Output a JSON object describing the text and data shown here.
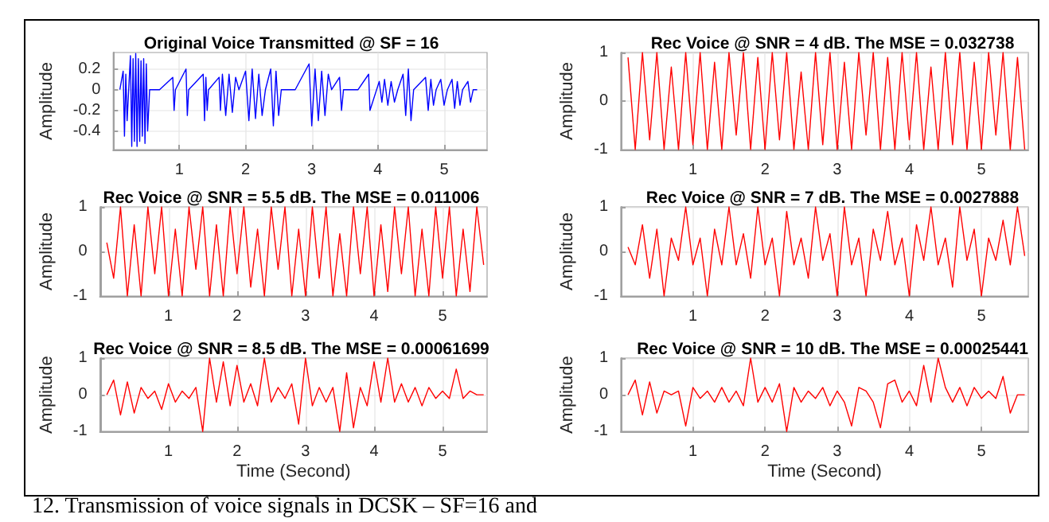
{
  "chart_data": [
    {
      "type": "line",
      "title": "Original Voice Transmitted @ SF = 16",
      "ylabel": "Amplitude",
      "color": "#0000ff",
      "grid": true,
      "line_style": "solid",
      "xlim": [
        0,
        5.65
      ],
      "xticks": [
        1,
        2,
        3,
        4,
        5
      ],
      "ylim": [
        -0.58,
        0.36
      ],
      "yticks": [
        -0.4,
        -0.2,
        0,
        0.2
      ],
      "x": [
        0.1,
        0.15,
        0.17,
        0.19,
        0.21,
        0.26,
        0.28,
        0.3,
        0.32,
        0.34,
        0.36,
        0.38,
        0.4,
        0.42,
        0.44,
        0.46,
        0.48,
        0.5,
        0.52,
        0.55,
        0.7,
        0.9,
        0.92,
        0.94,
        1.1,
        1.12,
        1.14,
        1.36,
        1.38,
        1.4,
        1.42,
        1.44,
        1.6,
        1.62,
        1.65,
        1.7,
        1.75,
        1.8,
        1.85,
        1.9,
        2.0,
        2.05,
        2.1,
        2.15,
        2.2,
        2.25,
        2.3,
        2.38,
        2.42,
        2.46,
        2.5,
        2.54,
        2.75,
        2.96,
        3.0,
        3.05,
        3.1,
        3.15,
        3.2,
        3.25,
        3.3,
        3.42,
        3.45,
        3.48,
        3.7,
        3.86,
        3.88,
        4.02,
        4.06,
        4.1,
        4.15,
        4.2,
        4.25,
        4.3,
        4.38,
        4.42,
        4.46,
        4.5,
        4.54,
        4.72,
        4.76,
        4.8,
        4.84,
        4.88,
        4.95,
        5.0,
        5.05,
        5.12,
        5.16,
        5.2,
        5.24,
        5.28,
        5.36,
        5.4,
        5.44,
        5.5
      ],
      "values": [
        0,
        0.18,
        -0.45,
        0.15,
        -0.3,
        0.33,
        -0.55,
        0.3,
        -0.5,
        0.35,
        -0.55,
        0.3,
        -0.5,
        0.28,
        -0.45,
        0.3,
        -0.52,
        0.25,
        -0.4,
        0,
        0,
        0.12,
        -0.2,
        0,
        0.2,
        -0.25,
        0,
        0.15,
        -0.3,
        0.12,
        -0.2,
        0,
        0.12,
        -0.2,
        0.15,
        -0.25,
        0.15,
        -0.22,
        0.12,
        0,
        0.18,
        -0.3,
        0.2,
        -0.28,
        0.15,
        -0.25,
        0,
        0.2,
        -0.35,
        0.18,
        -0.25,
        0,
        0,
        0.25,
        -0.35,
        0.2,
        -0.3,
        0.18,
        -0.25,
        0.15,
        0,
        0.12,
        -0.2,
        0,
        0,
        0.15,
        -0.2,
        0.08,
        -0.12,
        0.1,
        -0.15,
        0.08,
        -0.12,
        0,
        0.15,
        -0.25,
        0.2,
        -0.3,
        0,
        0.12,
        -0.2,
        0.1,
        -0.15,
        0,
        0.1,
        -0.15,
        0,
        0.1,
        -0.18,
        0.08,
        -0.15,
        0,
        0.08,
        -0.12,
        0,
        0
      ]
    },
    {
      "type": "line",
      "title": "Rec Voice @ SNR = 4 dB. The MSE = 0.032738",
      "ylabel": "Amplitude",
      "color": "#ff0000",
      "grid": true,
      "line_style": "solid",
      "xlim": [
        0,
        5.65
      ],
      "xticks": [
        1,
        2,
        3,
        4,
        5
      ],
      "ylim": [
        -1,
        1
      ],
      "yticks": [
        -1,
        0,
        1
      ],
      "x": [
        0.1,
        0.2,
        0.3,
        0.4,
        0.5,
        0.6,
        0.7,
        0.8,
        0.9,
        1.0,
        1.1,
        1.2,
        1.3,
        1.4,
        1.5,
        1.6,
        1.7,
        1.8,
        1.9,
        2.0,
        2.1,
        2.2,
        2.3,
        2.4,
        2.5,
        2.6,
        2.7,
        2.8,
        2.9,
        3.0,
        3.1,
        3.2,
        3.3,
        3.4,
        3.5,
        3.6,
        3.7,
        3.8,
        3.9,
        4.0,
        4.1,
        4.2,
        4.3,
        4.4,
        4.5,
        4.6,
        4.7,
        4.8,
        4.9,
        5.0,
        5.1,
        5.2,
        5.3,
        5.4,
        5.5,
        5.6
      ],
      "values": [
        0.9,
        -1,
        1,
        -0.8,
        1,
        -1,
        0.7,
        -1,
        1,
        -0.9,
        1,
        -1,
        0.8,
        -1,
        1,
        -0.7,
        1,
        -1,
        0.9,
        -1,
        1,
        -0.8,
        1,
        -1,
        0.6,
        -1,
        1,
        -0.9,
        1,
        -1,
        0.8,
        -1,
        1,
        -0.7,
        1,
        -1,
        0.9,
        -1,
        1,
        -0.8,
        1,
        -1,
        0.7,
        -1,
        1,
        -0.9,
        1,
        -1,
        0.8,
        -1,
        1,
        -0.7,
        1,
        -1,
        0.9,
        -1
      ]
    },
    {
      "type": "line",
      "title": "Rec Voice @ SNR = 5.5 dB. The MSE = 0.011006",
      "ylabel": "Amplitude",
      "color": "#ff0000",
      "grid": true,
      "line_style": "solid",
      "xlim": [
        0,
        5.65
      ],
      "xticks": [
        1,
        2,
        3,
        4,
        5
      ],
      "ylim": [
        -1,
        1
      ],
      "yticks": [
        -1,
        0,
        1
      ],
      "x": [
        0.1,
        0.2,
        0.3,
        0.4,
        0.5,
        0.6,
        0.7,
        0.8,
        0.9,
        1.0,
        1.1,
        1.2,
        1.3,
        1.4,
        1.5,
        1.6,
        1.7,
        1.8,
        1.9,
        2.0,
        2.1,
        2.2,
        2.3,
        2.4,
        2.5,
        2.6,
        2.7,
        2.8,
        2.9,
        3.0,
        3.1,
        3.2,
        3.3,
        3.4,
        3.5,
        3.6,
        3.7,
        3.8,
        3.9,
        4.0,
        4.1,
        4.2,
        4.3,
        4.4,
        4.5,
        4.6,
        4.7,
        4.8,
        4.9,
        5.0,
        5.1,
        5.2,
        5.3,
        5.4,
        5.5,
        5.6
      ],
      "values": [
        0.2,
        -0.6,
        1,
        -1,
        0.6,
        -1,
        1,
        -0.5,
        1,
        -1,
        0.5,
        -1,
        1,
        -0.4,
        1,
        -1,
        0.6,
        -1,
        1,
        -0.5,
        1,
        -0.8,
        0.5,
        -1,
        1,
        -0.4,
        1,
        -1,
        0.5,
        -1,
        1,
        -0.6,
        1,
        -1,
        0.4,
        -1,
        1,
        -0.5,
        1,
        -1,
        0.6,
        -0.9,
        1,
        -0.5,
        1,
        -1,
        0.5,
        -1,
        1,
        -0.6,
        1,
        -1,
        0.5,
        -0.9,
        1,
        -0.3
      ]
    },
    {
      "type": "line",
      "title": "Rec Voice @ SNR = 7 dB. The MSE = 0.0027888",
      "ylabel": "Amplitude",
      "color": "#ff0000",
      "grid": true,
      "line_style": "solid",
      "xlim": [
        0,
        5.65
      ],
      "xticks": [
        1,
        2,
        3,
        4,
        5
      ],
      "ylim": [
        -1,
        1
      ],
      "yticks": [
        -1,
        0,
        1
      ],
      "x": [
        0.1,
        0.2,
        0.3,
        0.4,
        0.5,
        0.6,
        0.7,
        0.8,
        0.9,
        1.0,
        1.1,
        1.2,
        1.3,
        1.4,
        1.5,
        1.6,
        1.7,
        1.8,
        1.9,
        2.0,
        2.1,
        2.2,
        2.3,
        2.4,
        2.5,
        2.6,
        2.7,
        2.8,
        2.9,
        3.0,
        3.1,
        3.2,
        3.3,
        3.4,
        3.5,
        3.6,
        3.7,
        3.8,
        3.9,
        4.0,
        4.1,
        4.2,
        4.3,
        4.4,
        4.5,
        4.6,
        4.7,
        4.8,
        4.9,
        5.0,
        5.1,
        5.2,
        5.3,
        5.4,
        5.5,
        5.6
      ],
      "values": [
        0.1,
        -0.3,
        0.6,
        -0.6,
        0.5,
        -1,
        0.3,
        -0.2,
        1,
        -0.3,
        0.3,
        -1,
        0.5,
        -0.3,
        1,
        -0.3,
        0.4,
        -0.6,
        1,
        -0.3,
        0.3,
        -1,
        0.9,
        -0.3,
        0.3,
        -0.6,
        1,
        -0.2,
        0.4,
        -1,
        1,
        -0.3,
        0.3,
        -1,
        0.5,
        -0.2,
        0.9,
        -0.3,
        0.3,
        -1,
        0.6,
        -0.2,
        1,
        -0.3,
        0.3,
        -0.8,
        1,
        -0.2,
        0.5,
        -1,
        0.3,
        -0.2,
        0.7,
        -0.3,
        1,
        -0.1
      ]
    },
    {
      "type": "line",
      "title": "Rec Voice @ SNR = 8.5 dB. The MSE = 0.00061699",
      "xlabel": "Time (Second)",
      "ylabel": "Amplitude",
      "color": "#ff0000",
      "grid": true,
      "line_style": "solid",
      "xlim": [
        0,
        5.65
      ],
      "xticks": [
        1,
        2,
        3,
        4,
        5
      ],
      "ylim": [
        -1,
        1
      ],
      "yticks": [
        -1,
        0,
        1
      ],
      "x": [
        0.1,
        0.2,
        0.3,
        0.4,
        0.5,
        0.6,
        0.7,
        0.8,
        0.9,
        1.0,
        1.1,
        1.2,
        1.3,
        1.4,
        1.5,
        1.6,
        1.7,
        1.8,
        1.9,
        2.0,
        2.1,
        2.2,
        2.3,
        2.4,
        2.5,
        2.6,
        2.7,
        2.8,
        2.9,
        3.0,
        3.1,
        3.2,
        3.3,
        3.4,
        3.5,
        3.6,
        3.7,
        3.8,
        3.9,
        4.0,
        4.1,
        4.2,
        4.3,
        4.4,
        4.5,
        4.6,
        4.7,
        4.8,
        4.9,
        5.0,
        5.1,
        5.2,
        5.3,
        5.4,
        5.5,
        5.6
      ],
      "values": [
        0,
        0.4,
        -0.55,
        0.35,
        -0.5,
        0.2,
        -0.1,
        0.1,
        -0.4,
        0.3,
        -0.2,
        0.1,
        -0.1,
        0.2,
        -1,
        1,
        -0.2,
        0.9,
        -0.3,
        0.8,
        -0.2,
        0.3,
        -0.3,
        1,
        -0.2,
        0.2,
        -0.1,
        0.3,
        -0.8,
        1,
        -0.3,
        0.2,
        -0.2,
        0.2,
        -1,
        0.6,
        -0.9,
        0.2,
        -0.3,
        0.9,
        -0.2,
        1,
        -0.2,
        0.3,
        -0.2,
        0.2,
        -0.3,
        0.2,
        -0.1,
        0.1,
        -0.1,
        0.7,
        -0.1,
        0.1,
        0,
        0
      ]
    },
    {
      "type": "line",
      "title": "Rec Voice @ SNR = 10 dB. The MSE = 0.00025441",
      "xlabel": "Time (Second)",
      "ylabel": "Amplitude",
      "color": "#ff0000",
      "grid": true,
      "line_style": "solid",
      "xlim": [
        0,
        5.65
      ],
      "xticks": [
        1,
        2,
        3,
        4,
        5
      ],
      "ylim": [
        -1,
        1
      ],
      "yticks": [
        -1,
        0,
        1
      ],
      "annotations": [
        "12. Transmission of voice signals in DCSK – SF=16 and"
      ],
      "x": [
        0.1,
        0.2,
        0.3,
        0.4,
        0.5,
        0.6,
        0.7,
        0.8,
        0.9,
        1.0,
        1.1,
        1.2,
        1.3,
        1.4,
        1.5,
        1.6,
        1.7,
        1.8,
        1.9,
        2.0,
        2.1,
        2.2,
        2.3,
        2.4,
        2.5,
        2.6,
        2.7,
        2.8,
        2.9,
        3.0,
        3.1,
        3.2,
        3.3,
        3.4,
        3.5,
        3.6,
        3.7,
        3.8,
        3.9,
        4.0,
        4.1,
        4.2,
        4.3,
        4.4,
        4.5,
        4.6,
        4.7,
        4.8,
        4.9,
        5.0,
        5.1,
        5.2,
        5.3,
        5.4,
        5.5,
        5.6
      ],
      "values": [
        0,
        0.4,
        -0.55,
        0.35,
        -0.5,
        0.1,
        0,
        0.1,
        -0.85,
        0.2,
        -0.1,
        0.1,
        -0.2,
        0.2,
        -0.2,
        0.1,
        -0.3,
        1,
        -0.2,
        0.2,
        -0.2,
        0.3,
        -1,
        0.2,
        -0.2,
        0.1,
        -0.1,
        0.2,
        -0.3,
        0.1,
        -0.2,
        -0.85,
        0.2,
        0.1,
        -0.2,
        -0.9,
        0.3,
        0.4,
        -0.2,
        0.1,
        -0.3,
        0.8,
        -0.2,
        1,
        0.2,
        -0.2,
        0.2,
        -0.3,
        0.2,
        -0.1,
        0.1,
        -0.1,
        0.5,
        -0.5,
        0,
        0
      ]
    }
  ]
}
